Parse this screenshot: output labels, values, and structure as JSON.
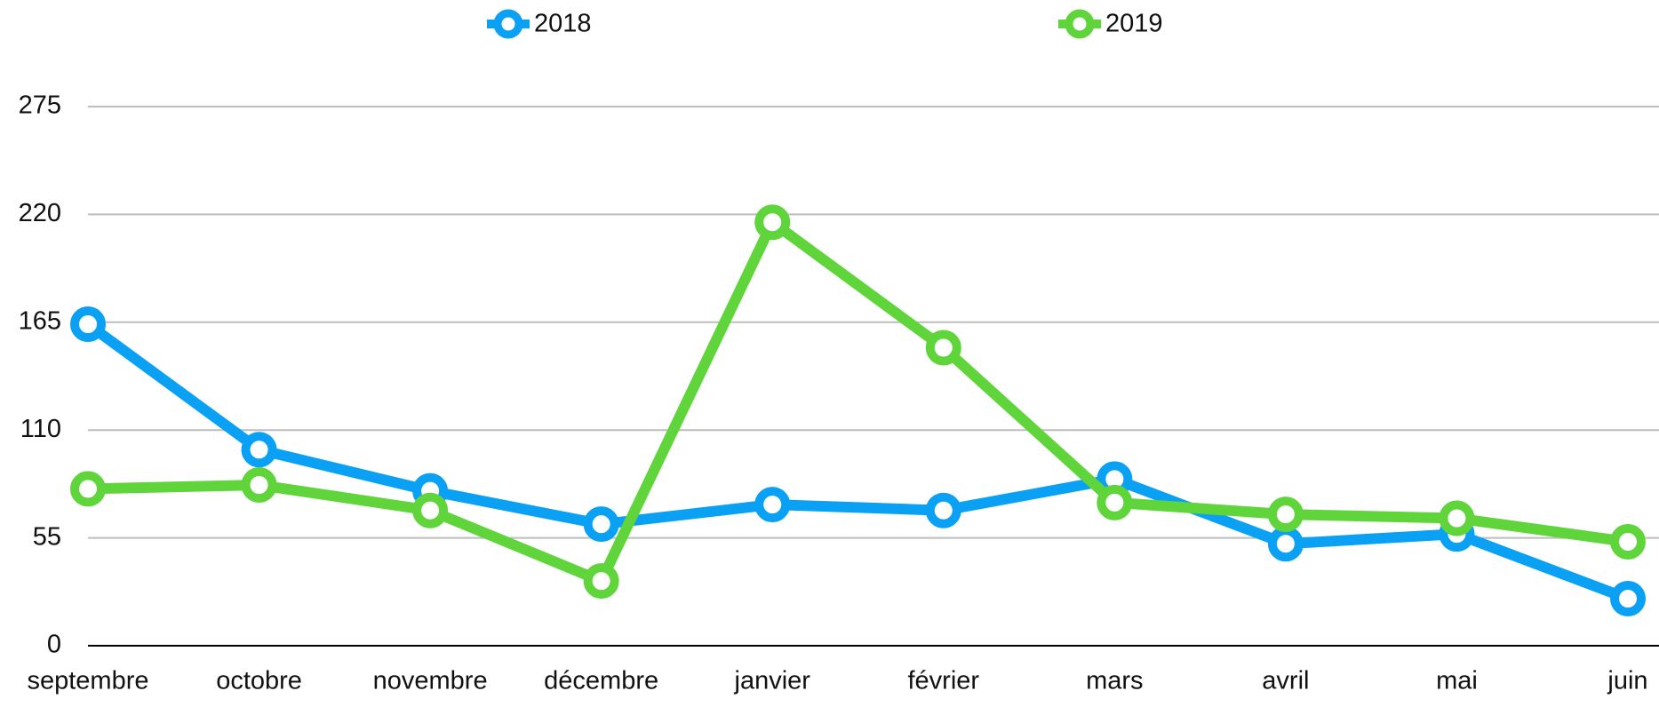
{
  "chart_data": {
    "type": "line",
    "categories": [
      "septembre",
      "octobre",
      "novembre",
      "décembre",
      "janvier",
      "février",
      "mars",
      "avril",
      "mai",
      "juin"
    ],
    "series": [
      {
        "name": "2018",
        "color": "#0aa1f4",
        "values": [
          164,
          100,
          79,
          62,
          72,
          69,
          85,
          52,
          57,
          24
        ]
      },
      {
        "name": "2019",
        "color": "#5fd53b",
        "values": [
          80,
          82,
          69,
          33,
          216,
          152,
          73,
          67,
          65,
          53
        ]
      }
    ],
    "ylim": [
      0,
      275
    ],
    "yticks": [
      0,
      55,
      110,
      165,
      220,
      275
    ],
    "grid": true,
    "legend": "top"
  }
}
